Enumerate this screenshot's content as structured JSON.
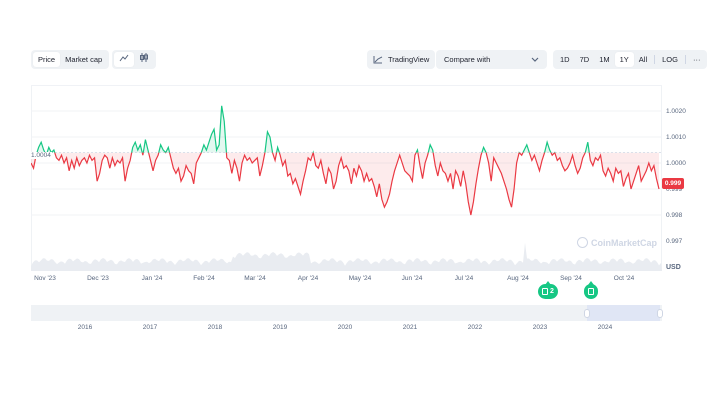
{
  "toolbar": {
    "metric_tabs": [
      {
        "label": "Price",
        "active": true
      },
      {
        "label": "Market cap",
        "active": false
      }
    ],
    "chart_type_icons": [
      {
        "name": "line-chart-icon",
        "active": true
      },
      {
        "name": "candlestick-icon",
        "active": false
      }
    ],
    "tradingview_label": "TradingView",
    "compare_label": "Compare with",
    "ranges": [
      {
        "label": "1D",
        "active": false
      },
      {
        "label": "7D",
        "active": false
      },
      {
        "label": "1M",
        "active": false
      },
      {
        "label": "1Y",
        "active": true
      },
      {
        "label": "All",
        "active": false
      }
    ],
    "log_label": "LOG",
    "more_label": "···"
  },
  "chart": {
    "open_label": "1.0004",
    "current_price": "0.999",
    "currency": "USD",
    "watermark": "CoinMarketCap",
    "colors": {
      "up": "#16c784",
      "down": "#ea3943",
      "grid": "#f1f3f6",
      "volume": "#e9ecf1"
    }
  },
  "events": [
    {
      "label": "2",
      "x": 548
    },
    {
      "label": "",
      "x": 591
    }
  ],
  "navigator": {
    "years": [
      "2016",
      "2017",
      "2018",
      "2019",
      "2020",
      "2021",
      "2022",
      "2023",
      "2024"
    ]
  },
  "chart_data": {
    "type": "line",
    "title": "",
    "xlabel": "",
    "ylabel": "USD",
    "ylim": [
      0.9966,
      1.0024
    ],
    "baseline": 1.0004,
    "y_ticks": [
      "1.0020",
      "1.0010",
      "1.0000",
      "0.999",
      "0.998",
      "0.997"
    ],
    "x_ticks": [
      "Nov '23",
      "Dec '23",
      "Jan '24",
      "Feb '24",
      "Mar '24",
      "Apr '24",
      "May '24",
      "Jun '24",
      "Jul '24",
      "Aug '24",
      "Sep '24",
      "Oct '24"
    ],
    "grid": true,
    "legend": "none",
    "series": [
      {
        "name": "Price",
        "values": [
          1.0,
          0.9998,
          1.0003,
          1.0006,
          1.0008,
          1.0005,
          1.0003,
          1.0006,
          1.0004,
          1.0005,
          1.0002,
          1.0001,
          1.0003,
          1.0,
          1.0002,
          0.9997,
          1.0001,
          0.9998,
          1.0002,
          0.9999,
          1.0001,
          1.0002,
          1.0,
          1.0003,
          1.0001,
          1.0002,
          0.9993,
          0.9996,
          1.0001,
          1.0003,
          1.0002,
          0.9998,
          1.0002,
          0.9999,
          1.0001,
          1.0,
          1.0002,
          0.9993,
          0.9998,
          1.0001,
          1.0006,
          1.0008,
          1.0005,
          1.0007,
          1.0003,
          1.0009,
          1.0005,
          1.0001,
          0.9997,
          1.0001,
          1.0003,
          1.0007,
          1.0005,
          1.0004,
          1.0006,
          1.0002,
          0.9998,
          0.9996,
          0.9998,
          0.9993,
          0.9995,
          0.9999,
          0.9997,
          0.9996,
          0.9992,
          1.0,
          1.0002,
          1.0004,
          1.0007,
          1.0005,
          1.0008,
          1.0011,
          1.0013,
          1.0005,
          1.0007,
          1.0022,
          1.0016,
          1.0002,
          1.0001,
          0.9996,
          1.0001,
          0.9998,
          0.9993,
          1.0,
          1.0003,
          1.0001,
          1.0002,
          1.0,
          1.0001,
          1.0002,
          0.9995,
          0.9999,
          1.0004,
          1.0012,
          1.001,
          1.0004,
          1.0001,
          1.0006,
          1.0003,
          0.9999,
          1.0001,
          0.9995,
          0.9996,
          0.9992,
          0.9994,
          0.9991,
          0.9988,
          0.9993,
          0.9997,
          1.0002,
          1.0001,
          1.0004,
          0.9999,
          0.9998,
          1.0001,
          0.9996,
          0.9992,
          0.9998,
          0.9996,
          0.999,
          0.9993,
          0.9999,
          1.0002,
          0.9998,
          0.9999,
          0.9997,
          0.9992,
          0.9998,
          0.9995,
          0.9999,
          0.9997,
          0.9993,
          0.9996,
          0.9993,
          0.9994,
          0.9991,
          0.9987,
          0.9992,
          0.9986,
          0.9983,
          0.9985,
          0.9988,
          0.9993,
          0.9997,
          1.0,
          1.0003,
          1.0,
          0.9997,
          0.9996,
          0.9995,
          0.9993,
          1.0003,
          1.0005,
          0.9999,
          0.9994,
          1.0,
          1.0003,
          1.0007,
          1.0005,
          0.9999,
          0.9995,
          1.0,
          0.9997,
          0.9996,
          0.9993,
          0.9996,
          0.999,
          0.9997,
          0.9995,
          0.9991,
          0.9997,
          0.9992,
          0.9985,
          0.998,
          0.9985,
          0.9992,
          0.9998,
          1.0003,
          1.0006,
          1.0004,
          1.0,
          0.9993,
          1.0002,
          1.0,
          0.9998,
          0.9996,
          0.9993,
          0.999,
          0.9986,
          0.9983,
          0.999,
          1.0,
          1.0004,
          1.0003,
          1.0005,
          1.0007,
          1.0004,
          1.0001,
          1.0003,
          1.0,
          0.9997,
          1.0001,
          1.0004,
          1.0008,
          1.0005,
          1.0003,
          1.0004,
          1.0001,
          1.0002,
          0.9999,
          0.9997,
          0.9998,
          1.0,
          1.0003,
          0.9999,
          0.9996,
          0.9998,
          1.0002,
          1.0004,
          1.0008,
          1.0001,
          0.9999,
          1.0002,
          1.0001,
          1.0003,
          0.9997,
          0.9995,
          0.9998,
          0.9996,
          0.9993,
          0.9998,
          0.9996,
          0.9997,
          0.9991,
          0.9994,
          0.9996,
          0.999,
          0.9993,
          0.9996,
          0.9999,
          0.9993,
          0.9995,
          0.9997,
          1.0,
          0.9997,
          0.9999,
          0.9994,
          0.999
        ]
      }
    ],
    "current_value": 0.999
  }
}
